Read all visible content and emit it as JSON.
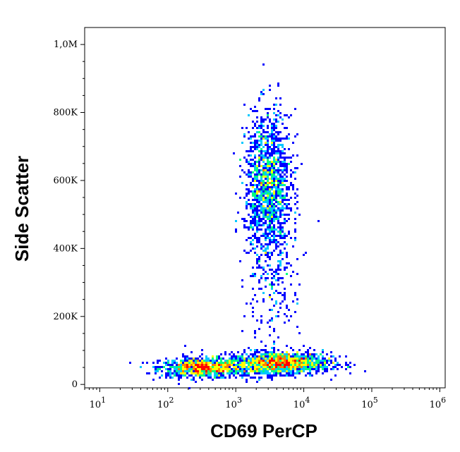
{
  "chart_data": {
    "type": "scatter",
    "title": "",
    "xlabel": "CD69 PerCP",
    "ylabel": "Side Scatter",
    "x_scale": "log",
    "xlim": [
      6,
      1200000
    ],
    "ylim": [
      -10000,
      1050000
    ],
    "x_ticks": [
      {
        "value": 10,
        "base": "10",
        "exp": "1"
      },
      {
        "value": 100,
        "base": "10",
        "exp": "2"
      },
      {
        "value": 1000,
        "base": "10",
        "exp": "3"
      },
      {
        "value": 10000,
        "base": "10",
        "exp": "4"
      },
      {
        "value": 100000,
        "base": "10",
        "exp": "5"
      },
      {
        "value": 1000000,
        "base": "10",
        "exp": "6"
      }
    ],
    "y_ticks": [
      {
        "value": 0,
        "label": "0"
      },
      {
        "value": 200000,
        "label": "200K"
      },
      {
        "value": 400000,
        "label": "400K"
      },
      {
        "value": 600000,
        "label": "600K"
      },
      {
        "value": 800000,
        "label": "800K"
      },
      {
        "value": 1000000,
        "label": "1,0M"
      }
    ],
    "grid": false,
    "colormap": [
      "#0000ff",
      "#00c8ff",
      "#00ff80",
      "#ffff00",
      "#ff8000",
      "#ff0000"
    ],
    "populations": [
      {
        "x_center": 300,
        "y_center": 48000,
        "x_spread_decades": 0.3,
        "y_spread": 14000,
        "weight": 900
      },
      {
        "x_center": 5000,
        "y_center": 65000,
        "x_spread_decades": 0.35,
        "y_spread": 16000,
        "weight": 1100
      },
      {
        "x_center": 1800,
        "y_center": 55000,
        "x_spread_decades": 0.5,
        "y_spread": 16000,
        "weight": 500
      },
      {
        "x_center": 3000,
        "y_center": 580000,
        "x_spread_decades": 0.17,
        "y_spread": 110000,
        "weight": 1500
      },
      {
        "x_center": 3200,
        "y_center": 260000,
        "x_spread_decades": 0.2,
        "y_spread": 90000,
        "weight": 180
      }
    ]
  }
}
